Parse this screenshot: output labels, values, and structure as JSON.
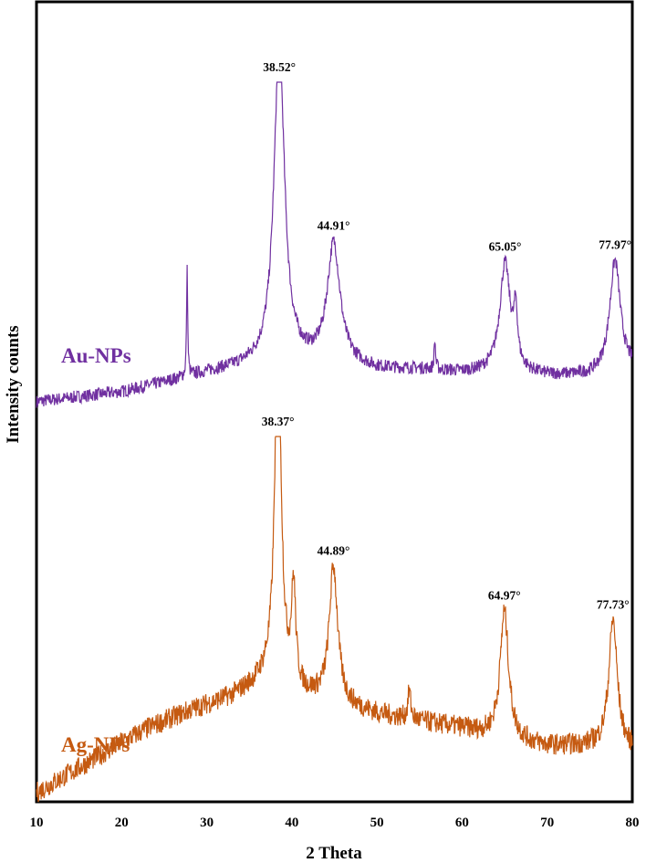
{
  "chart_data": {
    "type": "line",
    "xlabel": "2 Theta",
    "ylabel": "Intensity counts",
    "xlim": [
      10,
      80
    ],
    "x_ticks": [
      10,
      20,
      30,
      40,
      50,
      60,
      70,
      80
    ],
    "x_tick_labels": [
      "10",
      "20",
      "30",
      "40",
      "50",
      "60",
      "70",
      "80"
    ],
    "grid": false,
    "y_tick_labels_shown": false,
    "series": [
      {
        "name": "Au-NPs",
        "color": "#7030a0",
        "baseline": [
          [
            10,
            0.0
          ],
          [
            20,
            0.03
          ],
          [
            25,
            0.06
          ],
          [
            30,
            0.09
          ],
          [
            35,
            0.11
          ],
          [
            40,
            0.12
          ],
          [
            45,
            0.12
          ],
          [
            50,
            0.1
          ],
          [
            55,
            0.1
          ],
          [
            60,
            0.09
          ],
          [
            65,
            0.09
          ],
          [
            70,
            0.08
          ],
          [
            75,
            0.08
          ],
          [
            80,
            0.1
          ]
        ],
        "peaks": [
          {
            "center": 27.7,
            "height": 0.33,
            "width": 0.08
          },
          {
            "center": 38.52,
            "height": 1.0,
            "width": 0.75
          },
          {
            "center": 44.91,
            "height": 0.37,
            "width": 0.9
          },
          {
            "center": 56.8,
            "height": 0.09,
            "width": 0.1
          },
          {
            "center": 65.05,
            "height": 0.34,
            "width": 0.75
          },
          {
            "center": 66.3,
            "height": 0.16,
            "width": 0.25
          },
          {
            "center": 77.97,
            "height": 0.35,
            "width": 0.75
          }
        ],
        "noise": 0.02,
        "peak_labels": [
          {
            "x": 38.52,
            "text": "38.52°"
          },
          {
            "x": 44.91,
            "text": "44.91°"
          },
          {
            "x": 65.05,
            "text": "65.05°"
          },
          {
            "x": 77.97,
            "text": "77.97°"
          }
        ]
      },
      {
        "name": "Ag-NPs",
        "color": "#c55a11",
        "baseline": [
          [
            10,
            0.0
          ],
          [
            15,
            0.07
          ],
          [
            20,
            0.14
          ],
          [
            23,
            0.18
          ],
          [
            28,
            0.23
          ],
          [
            33,
            0.27
          ],
          [
            37,
            0.32
          ],
          [
            40,
            0.28
          ],
          [
            45,
            0.25
          ],
          [
            50,
            0.22
          ],
          [
            55,
            0.2
          ],
          [
            60,
            0.18
          ],
          [
            65,
            0.15
          ],
          [
            70,
            0.13
          ],
          [
            75,
            0.13
          ],
          [
            80,
            0.12
          ]
        ],
        "peaks": [
          {
            "center": 38.37,
            "height": 1.0,
            "width": 0.45
          },
          {
            "center": 40.2,
            "height": 0.28,
            "width": 0.3
          },
          {
            "center": 44.89,
            "height": 0.38,
            "width": 0.6
          },
          {
            "center": 53.8,
            "height": 0.08,
            "width": 0.2
          },
          {
            "center": 64.97,
            "height": 0.36,
            "width": 0.6
          },
          {
            "center": 77.73,
            "height": 0.36,
            "width": 0.6
          }
        ],
        "noise": 0.03,
        "peak_labels": [
          {
            "x": 38.37,
            "text": "38.37°"
          },
          {
            "x": 44.89,
            "text": "44.89°"
          },
          {
            "x": 64.97,
            "text": "64.97°"
          },
          {
            "x": 77.73,
            "text": "77.73°"
          }
        ]
      }
    ]
  }
}
